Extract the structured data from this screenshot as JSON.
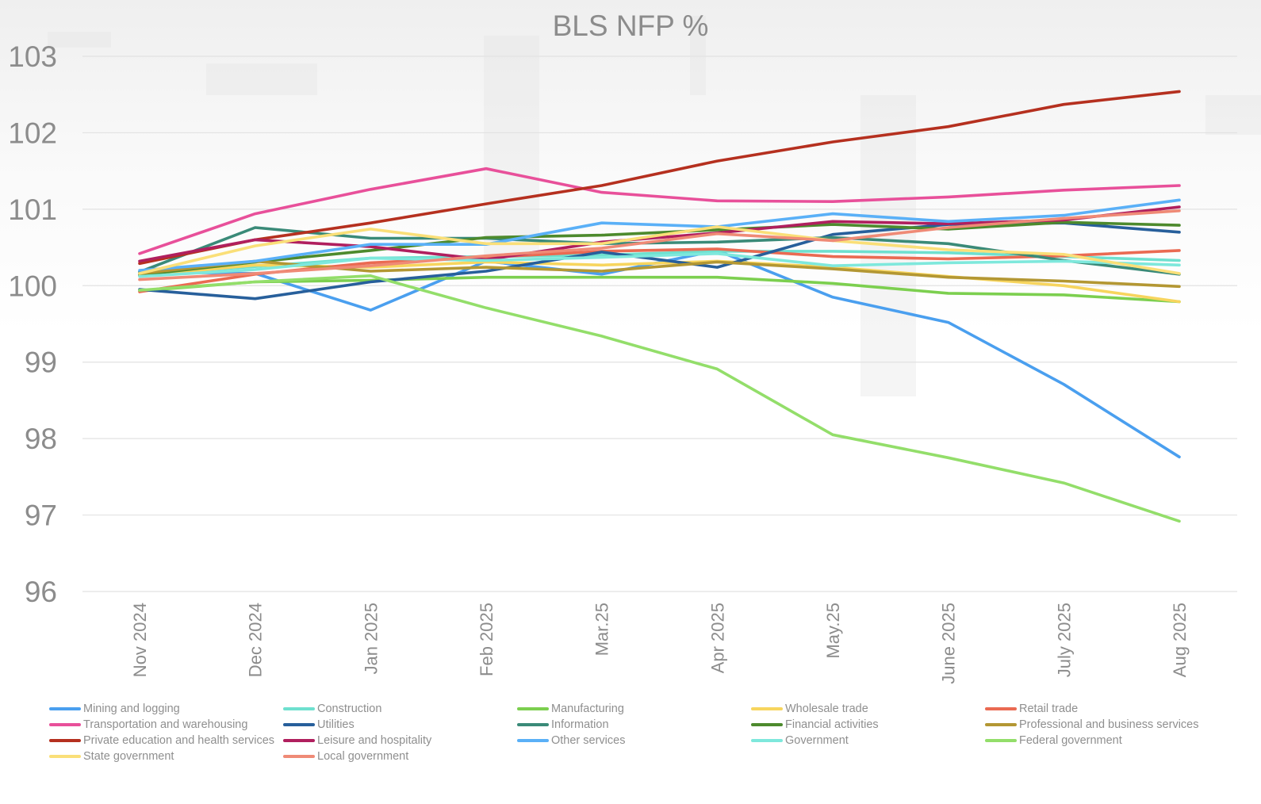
{
  "chart_data": {
    "type": "line",
    "title": "BLS NFP %",
    "xlabel": "",
    "ylabel": "",
    "ylim": [
      96,
      103
    ],
    "yticks": [
      96,
      97,
      98,
      99,
      100,
      101,
      102,
      103
    ],
    "grid": true,
    "legend_position": "bottom",
    "categories": [
      "Nov 2024",
      "Dec 2024",
      "Jan 2025",
      "Feb 2025",
      "Mar.25",
      "Apr 2025",
      "May.25",
      "June 2025",
      "July 2025",
      "Aug 2025"
    ],
    "series": [
      {
        "name": "Mining and logging",
        "color": "#4a9fef",
        "values": [
          100.18,
          100.16,
          99.68,
          100.32,
          100.15,
          100.46,
          99.85,
          99.52,
          98.71,
          97.76
        ]
      },
      {
        "name": "Construction",
        "color": "#6ee0cf",
        "values": [
          100.15,
          100.25,
          100.36,
          100.38,
          100.4,
          100.45,
          100.45,
          100.43,
          100.38,
          100.33
        ]
      },
      {
        "name": "Manufacturing",
        "color": "#7ccf4f",
        "values": [
          99.93,
          100.05,
          100.07,
          100.11,
          100.11,
          100.11,
          100.03,
          99.9,
          99.88,
          99.79
        ]
      },
      {
        "name": "Wholesale trade",
        "color": "#f7d55e",
        "values": [
          100.13,
          100.27,
          100.24,
          100.31,
          100.27,
          100.32,
          100.24,
          100.12,
          100.0,
          99.79
        ]
      },
      {
        "name": "Retail trade",
        "color": "#ea6a52",
        "values": [
          99.92,
          100.15,
          100.3,
          100.37,
          100.45,
          100.48,
          100.38,
          100.35,
          100.39,
          100.46
        ]
      },
      {
        "name": "Transportation and warehousing",
        "color": "#e8509a",
        "values": [
          100.42,
          100.94,
          101.26,
          101.53,
          101.22,
          101.11,
          101.1,
          101.16,
          101.25,
          101.31
        ]
      },
      {
        "name": "Utilities",
        "color": "#275f9b",
        "values": [
          99.95,
          99.83,
          100.05,
          100.19,
          100.44,
          100.24,
          100.67,
          100.8,
          100.82,
          100.7
        ]
      },
      {
        "name": "Information",
        "color": "#3a8a78",
        "values": [
          100.18,
          100.76,
          100.62,
          100.62,
          100.55,
          100.57,
          100.63,
          100.55,
          100.33,
          100.15
        ]
      },
      {
        "name": "Financial activities",
        "color": "#4d8a2d",
        "values": [
          100.14,
          100.31,
          100.46,
          100.63,
          100.66,
          100.73,
          100.8,
          100.74,
          100.83,
          100.79
        ]
      },
      {
        "name": "Professional and business services",
        "color": "#b39733",
        "values": [
          100.16,
          100.32,
          100.19,
          100.24,
          100.19,
          100.31,
          100.22,
          100.11,
          100.06,
          99.99
        ]
      },
      {
        "name": "Private education and health services",
        "color": "#b5301f",
        "values": [
          100.29,
          100.6,
          100.82,
          101.07,
          101.31,
          101.63,
          101.88,
          102.08,
          102.37,
          102.54
        ]
      },
      {
        "name": "Leisure and hospitality",
        "color": "#b01f5e",
        "values": [
          100.32,
          100.6,
          100.51,
          100.34,
          100.57,
          100.69,
          100.84,
          100.81,
          100.86,
          101.03
        ]
      },
      {
        "name": "Other services",
        "color": "#5ab0f7",
        "values": [
          100.2,
          100.32,
          100.54,
          100.54,
          100.82,
          100.77,
          100.94,
          100.84,
          100.92,
          101.12
        ]
      },
      {
        "name": "Government",
        "color": "#7ee8dc",
        "values": [
          100.12,
          100.21,
          100.36,
          100.33,
          100.37,
          100.42,
          100.26,
          100.3,
          100.32,
          100.27
        ]
      },
      {
        "name": "Federal government",
        "color": "#93de6a",
        "values": [
          99.94,
          100.05,
          100.13,
          99.71,
          99.34,
          98.91,
          98.05,
          97.75,
          97.42,
          96.92
        ]
      },
      {
        "name": "State government",
        "color": "#fadf78",
        "values": [
          100.16,
          100.52,
          100.74,
          100.55,
          100.55,
          100.77,
          100.59,
          100.47,
          100.41,
          100.16
        ]
      },
      {
        "name": "Local government",
        "color": "#ef8a76",
        "values": [
          100.08,
          100.16,
          100.26,
          100.39,
          100.49,
          100.68,
          100.59,
          100.76,
          100.88,
          100.98
        ]
      }
    ]
  }
}
